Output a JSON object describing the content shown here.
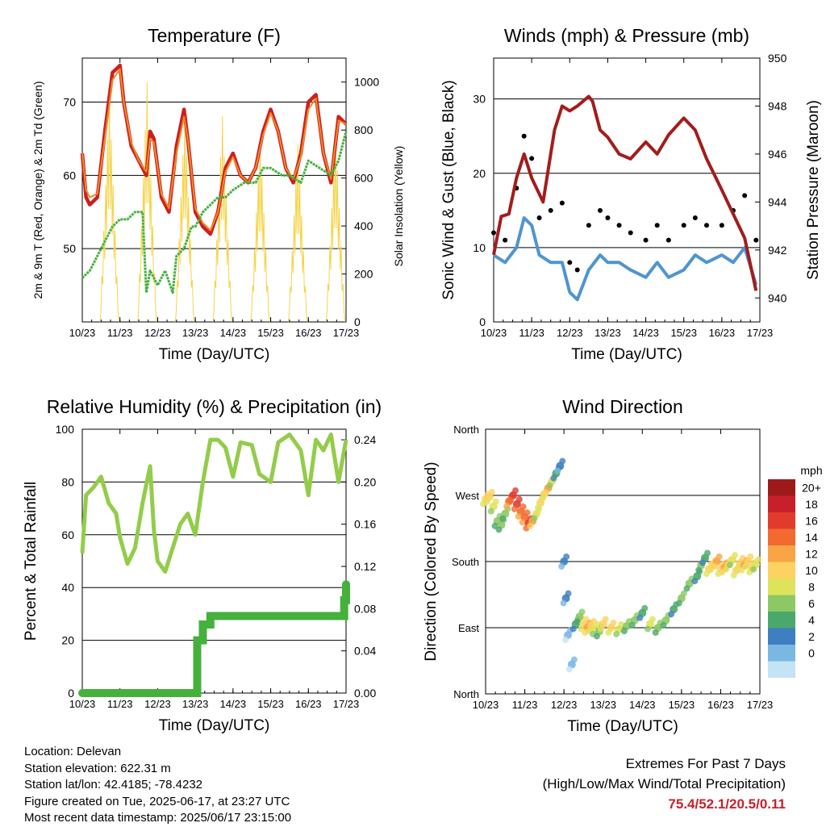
{
  "chart_data": [
    {
      "type": "line",
      "title": "Temperature (F)",
      "xlabel": "Time (Day/UTC)",
      "ylabel": "2m & 9m T (Red, Orange) & 2m Td (Green)",
      "y2label": "Solar Insolation (Yellow)",
      "x_ticks": [
        "10/23",
        "11/23",
        "12/23",
        "13/23",
        "14/23",
        "15/23",
        "16/23",
        "17/23"
      ],
      "ylim": [
        40,
        76
      ],
      "y_ticks": [
        50,
        60,
        70
      ],
      "y2lim": [
        0,
        1100
      ],
      "y2_ticks": [
        0,
        200,
        400,
        600,
        800,
        1000
      ],
      "grid": true,
      "series": [
        {
          "color": "#cc2020",
          "x": [
            0,
            0.1,
            0.2,
            0.4,
            0.6,
            0.8,
            1.0,
            1.1,
            1.3,
            1.5,
            1.7,
            1.8,
            1.9,
            2.0,
            2.1,
            2.3,
            2.5,
            2.7,
            2.8,
            3.0,
            3.2,
            3.4,
            3.6,
            3.8,
            4.0,
            4.2,
            4.4,
            4.6,
            4.8,
            5.0,
            5.2,
            5.4,
            5.6,
            5.8,
            6.0,
            6.2,
            6.4,
            6.6,
            6.8,
            7.0
          ],
          "values": [
            63,
            57,
            56,
            57,
            66,
            74,
            75,
            70,
            64,
            62,
            60,
            66,
            65,
            61,
            57,
            55,
            64,
            69,
            65,
            55,
            53,
            52,
            55,
            61,
            63,
            60,
            59,
            61,
            66,
            69,
            66,
            61,
            59,
            63,
            70,
            71,
            63,
            59,
            68,
            67
          ]
        },
        {
          "color": "#f08a24",
          "x": [
            0,
            0.1,
            0.2,
            0.4,
            0.6,
            0.8,
            1.0,
            1.1,
            1.3,
            1.5,
            1.7,
            1.8,
            1.9,
            2.0,
            2.1,
            2.3,
            2.5,
            2.7,
            2.8,
            3.0,
            3.2,
            3.4,
            3.6,
            3.8,
            4.0,
            4.2,
            4.4,
            4.6,
            4.8,
            5.0,
            5.2,
            5.4,
            5.6,
            5.8,
            6.0,
            6.2,
            6.4,
            6.6,
            6.8,
            7.0
          ],
          "values": [
            63,
            58,
            57,
            57.5,
            65,
            73,
            74.5,
            70,
            64.5,
            62,
            60.5,
            65,
            64.5,
            61,
            57.5,
            55.5,
            63,
            68,
            65,
            55.5,
            53.5,
            52.5,
            55,
            60.5,
            62.5,
            60,
            59,
            61,
            65.5,
            68.5,
            66,
            61,
            59.5,
            62.5,
            69,
            70.5,
            63,
            59.5,
            67.5,
            67
          ]
        },
        {
          "color": "#46b03c",
          "x": [
            0,
            0.2,
            0.4,
            0.6,
            0.8,
            1.0,
            1.2,
            1.4,
            1.6,
            1.7,
            1.8,
            2.0,
            2.2,
            2.4,
            2.5,
            2.7,
            2.9,
            3.0,
            3.2,
            3.4,
            3.6,
            3.8,
            4.0,
            4.3,
            4.6,
            4.8,
            5.0,
            5.3,
            5.5,
            5.8,
            6.0,
            6.3,
            6.6,
            6.8,
            7.0
          ],
          "values": [
            46,
            47,
            49,
            51,
            53,
            54,
            54,
            55,
            55,
            44,
            47,
            45,
            47,
            44,
            49,
            50,
            53,
            53,
            55,
            56,
            57,
            57,
            58,
            59,
            59,
            61,
            61,
            60,
            60,
            59,
            62,
            61,
            60,
            62,
            66
          ]
        }
      ],
      "insolation": {
        "color": "#f5d44a",
        "days": [
          0,
          1,
          2,
          3,
          4,
          5,
          6
        ],
        "peaks": [
          950,
          1000,
          870,
          860,
          760,
          740,
          790
        ]
      }
    },
    {
      "type": "scatter",
      "title": "Winds (mph) & Pressure (mb)",
      "xlabel": "Time (Day/UTC)",
      "ylabel": "Sonic Wind & Gust (Blue, Black)",
      "y2label": "Station Pressure (Maroon)",
      "x_ticks": [
        "10/23",
        "11/23",
        "12/23",
        "13/23",
        "14/23",
        "15/23",
        "16/23",
        "17/23"
      ],
      "ylim": [
        0,
        35.5
      ],
      "y_ticks": [
        0,
        10,
        20,
        30
      ],
      "y2lim": [
        939,
        950
      ],
      "y2_ticks": [
        940,
        942,
        944,
        946,
        948,
        950
      ],
      "grid": true,
      "series": [
        {
          "name": "Sonic Wind",
          "color": "#4f95cf",
          "x": [
            0,
            0.3,
            0.6,
            0.8,
            1.0,
            1.2,
            1.5,
            1.8,
            2.0,
            2.2,
            2.5,
            2.8,
            3.0,
            3.3,
            3.6,
            4.0,
            4.3,
            4.6,
            5.0,
            5.3,
            5.6,
            6.0,
            6.3,
            6.6,
            6.9
          ],
          "values": [
            9,
            8,
            10,
            14,
            13,
            9,
            8,
            8,
            4,
            3,
            7,
            9,
            8,
            8,
            7,
            6,
            8,
            6,
            7,
            9,
            8,
            9,
            8,
            10,
            5
          ]
        },
        {
          "name": "Gust",
          "color": "#000000",
          "x": [
            0,
            0.3,
            0.6,
            0.8,
            1.0,
            1.2,
            1.5,
            1.8,
            2.0,
            2.2,
            2.5,
            2.8,
            3.0,
            3.3,
            3.6,
            4.0,
            4.3,
            4.6,
            5.0,
            5.3,
            5.6,
            6.0,
            6.3,
            6.6,
            6.9
          ],
          "values": [
            12,
            11,
            18,
            25,
            22,
            14,
            15,
            16,
            8,
            7,
            13,
            15,
            14,
            13,
            12,
            11,
            13,
            11,
            13,
            14,
            13,
            13,
            15,
            17,
            11
          ]
        },
        {
          "name": "Station Pressure",
          "color": "#a31c1c",
          "x": [
            0,
            0.2,
            0.4,
            0.6,
            0.8,
            1.0,
            1.3,
            1.6,
            1.8,
            2.0,
            2.2,
            2.5,
            2.6,
            2.8,
            3.0,
            3.3,
            3.6,
            4.0,
            4.3,
            4.6,
            5.0,
            5.3,
            5.6,
            6.0,
            6.3,
            6.6,
            6.9
          ],
          "values": [
            941.8,
            943.4,
            943.5,
            945,
            946,
            945,
            944,
            947,
            948,
            947.8,
            948,
            948.4,
            948.2,
            947,
            946.7,
            946,
            945.8,
            946.5,
            946,
            946.8,
            947.5,
            947,
            945.8,
            944.5,
            943.5,
            942.5,
            940.3
          ]
        }
      ]
    },
    {
      "type": "line",
      "title": "Relative Humidity (%) & Precipitation (in)",
      "xlabel": "Time (Day/UTC)",
      "ylabel": "Percent & Total Rainfall",
      "x_ticks": [
        "10/23",
        "11/23",
        "12/23",
        "13/23",
        "14/23",
        "15/23",
        "16/23",
        "17/23"
      ],
      "ylim": [
        0,
        100
      ],
      "y_ticks": [
        0,
        20,
        40,
        60,
        80,
        100
      ],
      "y2lim": [
        0,
        0.25
      ],
      "y2_ticks": [
        "0.00",
        "0.04",
        "0.08",
        "0.12",
        "0.16",
        "0.20",
        "0.24"
      ],
      "grid": true,
      "series": [
        {
          "name": "Relative Humidity",
          "color": "#93cc4a",
          "x": [
            0,
            0.1,
            0.3,
            0.5,
            0.7,
            0.9,
            1.0,
            1.2,
            1.4,
            1.6,
            1.8,
            1.9,
            2.0,
            2.2,
            2.4,
            2.6,
            2.8,
            3.0,
            3.2,
            3.4,
            3.6,
            3.8,
            4.0,
            4.2,
            4.5,
            4.7,
            5.0,
            5.2,
            5.5,
            5.8,
            6.0,
            6.2,
            6.4,
            6.6,
            6.8,
            7.0
          ],
          "values": [
            53,
            75,
            78,
            82,
            72,
            68,
            59,
            49,
            55,
            72,
            86,
            62,
            50,
            46,
            55,
            64,
            68,
            60,
            80,
            96,
            96,
            93,
            82,
            95,
            94,
            83,
            80,
            95,
            98,
            92,
            75,
            96,
            92,
            98,
            80,
            96
          ]
        },
        {
          "name": "Precipitation",
          "color": "#46b03c",
          "x": [
            0,
            3.0,
            3.05,
            3.2,
            3.4,
            6.9,
            6.95,
            7.0
          ],
          "values": [
            0,
            0,
            0.05,
            0.065,
            0.073,
            0.073,
            0.088,
            0.103
          ]
        }
      ]
    },
    {
      "type": "scatter",
      "title": "Wind Direction",
      "xlabel": "Time (Day/UTC)",
      "ylabel": "Direction (Colored By Speed)",
      "x_ticks": [
        "10/23",
        "11/23",
        "12/23",
        "13/23",
        "14/23",
        "15/23",
        "16/23",
        "17/23"
      ],
      "y_ticks": [
        "North",
        "East",
        "South",
        "West",
        "North"
      ],
      "ylim": [
        0,
        360
      ],
      "grid": true,
      "colorbar": {
        "title": "mph",
        "labels": [
          "20+",
          "18",
          "16",
          "14",
          "12",
          "10",
          "8",
          "6",
          "4",
          "2",
          "0"
        ],
        "colors": [
          "#9e1a1a",
          "#c8202a",
          "#e23b2e",
          "#f26a2f",
          "#f9a546",
          "#fdd261",
          "#dfe35b",
          "#8cc965",
          "#4aa86c",
          "#3d7fc0",
          "#7ab7e3",
          "#c4e3f5"
        ]
      },
      "points": [
        [
          0.0,
          265,
          12
        ],
        [
          0.1,
          268,
          12
        ],
        [
          0.2,
          255,
          9
        ],
        [
          0.3,
          235,
          8
        ],
        [
          0.4,
          230,
          7
        ],
        [
          0.5,
          245,
          8
        ],
        [
          0.6,
          262,
          15
        ],
        [
          0.7,
          270,
          17
        ],
        [
          0.8,
          258,
          18
        ],
        [
          0.9,
          248,
          16
        ],
        [
          1.0,
          240,
          15
        ],
        [
          1.1,
          232,
          17
        ],
        [
          1.2,
          235,
          14
        ],
        [
          1.3,
          245,
          10
        ],
        [
          1.4,
          260,
          11
        ],
        [
          1.5,
          272,
          12
        ],
        [
          1.6,
          280,
          14
        ],
        [
          1.7,
          290,
          9
        ],
        [
          1.8,
          300,
          5
        ],
        [
          1.9,
          310,
          3
        ],
        [
          2.0,
          180,
          3
        ],
        [
          2.05,
          130,
          4
        ],
        [
          2.1,
          80,
          2
        ],
        [
          2.2,
          40,
          2
        ],
        [
          2.3,
          95,
          6
        ],
        [
          2.4,
          105,
          8
        ],
        [
          2.5,
          95,
          11
        ],
        [
          2.6,
          90,
          13
        ],
        [
          2.7,
          92,
          12
        ],
        [
          2.8,
          88,
          9
        ],
        [
          2.9,
          85,
          8
        ],
        [
          3.0,
          95,
          11
        ],
        [
          3.2,
          90,
          12
        ],
        [
          3.4,
          88,
          9
        ],
        [
          3.6,
          92,
          8
        ],
        [
          3.8,
          100,
          7
        ],
        [
          4.0,
          110,
          6
        ],
        [
          4.2,
          95,
          10
        ],
        [
          4.4,
          90,
          8
        ],
        [
          4.6,
          100,
          7
        ],
        [
          4.8,
          115,
          6
        ],
        [
          5.0,
          130,
          8
        ],
        [
          5.2,
          150,
          7
        ],
        [
          5.4,
          160,
          6
        ],
        [
          5.5,
          175,
          7
        ],
        [
          5.6,
          185,
          5
        ],
        [
          5.7,
          170,
          12
        ],
        [
          5.8,
          175,
          11
        ],
        [
          5.9,
          180,
          13
        ],
        [
          6.0,
          170,
          12
        ],
        [
          6.1,
          172,
          14
        ],
        [
          6.2,
          176,
          12
        ],
        [
          6.3,
          182,
          10
        ],
        [
          6.4,
          168,
          11
        ],
        [
          6.5,
          178,
          12
        ],
        [
          6.6,
          175,
          13
        ],
        [
          6.7,
          180,
          11
        ],
        [
          6.8,
          172,
          12
        ],
        [
          6.9,
          176,
          10
        ]
      ]
    }
  ],
  "footer": {
    "location": "Location: Delevan",
    "elevation": "Station elevation: 622.31 m",
    "latlon": "Station lat/lon: 42.4185; -78.4232",
    "created": "Figure created on Tue, 2025-06-17, at 23:27 UTC",
    "recent": "Most recent data timestamp: 2025/06/17 23:15:00"
  },
  "extremes": {
    "title": "Extremes For Past 7 Days",
    "subtitle": "(High/Low/Max Wind/Total Precipitation)",
    "values": "75.4/52.1/20.5/0.11"
  }
}
